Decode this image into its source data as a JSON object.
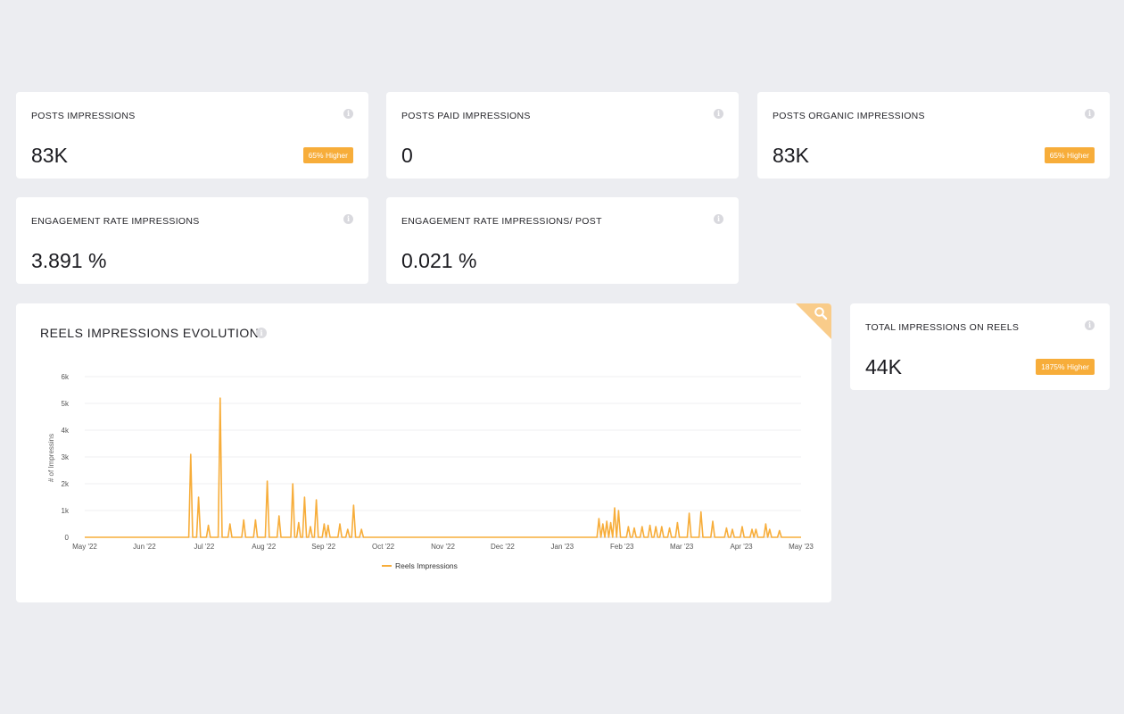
{
  "cards": [
    {
      "label": "POSTS IMPRESSIONS",
      "value": "83K",
      "badge": "65% Higher"
    },
    {
      "label": "POSTS PAID IMPRESSIONS",
      "value": "0",
      "badge": ""
    },
    {
      "label": "POSTS ORGANIC IMPRESSIONS",
      "value": "83K",
      "badge": "65% Higher"
    },
    {
      "label": "ENGAGEMENT RATE IMPRESSIONS",
      "value": "3.891 %",
      "badge": ""
    },
    {
      "label": "ENGAGEMENT RATE IMPRESSIONS/ POST",
      "value": "0.021 %",
      "badge": ""
    },
    {
      "label": "TOTAL IMPRESSIONS ON REELS",
      "value": "44K",
      "badge": "1875% Higher"
    }
  ],
  "info_glyph": "i",
  "chart_section": {
    "title": "REELS IMPRESSIONS EVOLUTION",
    "zoom_icon": "search-icon",
    "accent": "#f7ad3a"
  },
  "chart_data": {
    "type": "line",
    "title": "REELS IMPRESSIONS EVOLUTION",
    "ylabel": "# of Impressins",
    "xlabel": "",
    "ylim": [
      0,
      6000
    ],
    "y_ticks": [
      "0",
      "1k",
      "2k",
      "3k",
      "4k",
      "5k",
      "6k"
    ],
    "x_ticks": [
      "May '22",
      "Jun '22",
      "Jul '22",
      "Aug '22",
      "Sep '22",
      "Oct '22",
      "Nov '22",
      "Dec '22",
      "Jan '23",
      "Feb '23",
      "Mar '23",
      "Apr '23",
      "May '23"
    ],
    "grid": true,
    "legend": "bottom",
    "series": [
      {
        "name": "Reels Impressions",
        "color": "#f7ad3a",
        "points": [
          [
            "2022-05-01",
            0
          ],
          [
            "2022-06-24",
            3100
          ],
          [
            "2022-06-28",
            1500
          ],
          [
            "2022-07-03",
            450
          ],
          [
            "2022-07-09",
            5200
          ],
          [
            "2022-07-14",
            500
          ],
          [
            "2022-07-21",
            650
          ],
          [
            "2022-07-27",
            650
          ],
          [
            "2022-08-02",
            2100
          ],
          [
            "2022-08-08",
            800
          ],
          [
            "2022-08-15",
            2000
          ],
          [
            "2022-08-18",
            550
          ],
          [
            "2022-08-21",
            1500
          ],
          [
            "2022-08-24",
            400
          ],
          [
            "2022-08-27",
            1400
          ],
          [
            "2022-08-31",
            500
          ],
          [
            "2022-09-02",
            450
          ],
          [
            "2022-09-08",
            500
          ],
          [
            "2022-09-12",
            300
          ],
          [
            "2022-09-15",
            1200
          ],
          [
            "2022-09-19",
            300
          ],
          [
            "2023-01-18",
            700
          ],
          [
            "2023-01-20",
            500
          ],
          [
            "2023-01-22",
            600
          ],
          [
            "2023-01-24",
            550
          ],
          [
            "2023-01-26",
            1100
          ],
          [
            "2023-01-28",
            1000
          ],
          [
            "2023-02-02",
            400
          ],
          [
            "2023-02-05",
            350
          ],
          [
            "2023-02-09",
            400
          ],
          [
            "2023-02-13",
            450
          ],
          [
            "2023-02-16",
            400
          ],
          [
            "2023-02-19",
            400
          ],
          [
            "2023-02-23",
            350
          ],
          [
            "2023-02-27",
            550
          ],
          [
            "2023-03-05",
            900
          ],
          [
            "2023-03-11",
            950
          ],
          [
            "2023-03-17",
            600
          ],
          [
            "2023-03-24",
            350
          ],
          [
            "2023-03-27",
            300
          ],
          [
            "2023-04-01",
            400
          ],
          [
            "2023-04-06",
            300
          ],
          [
            "2023-04-08",
            300
          ],
          [
            "2023-04-13",
            500
          ],
          [
            "2023-04-15",
            300
          ],
          [
            "2023-04-20",
            250
          ],
          [
            "2023-05-01",
            0
          ]
        ]
      }
    ]
  }
}
